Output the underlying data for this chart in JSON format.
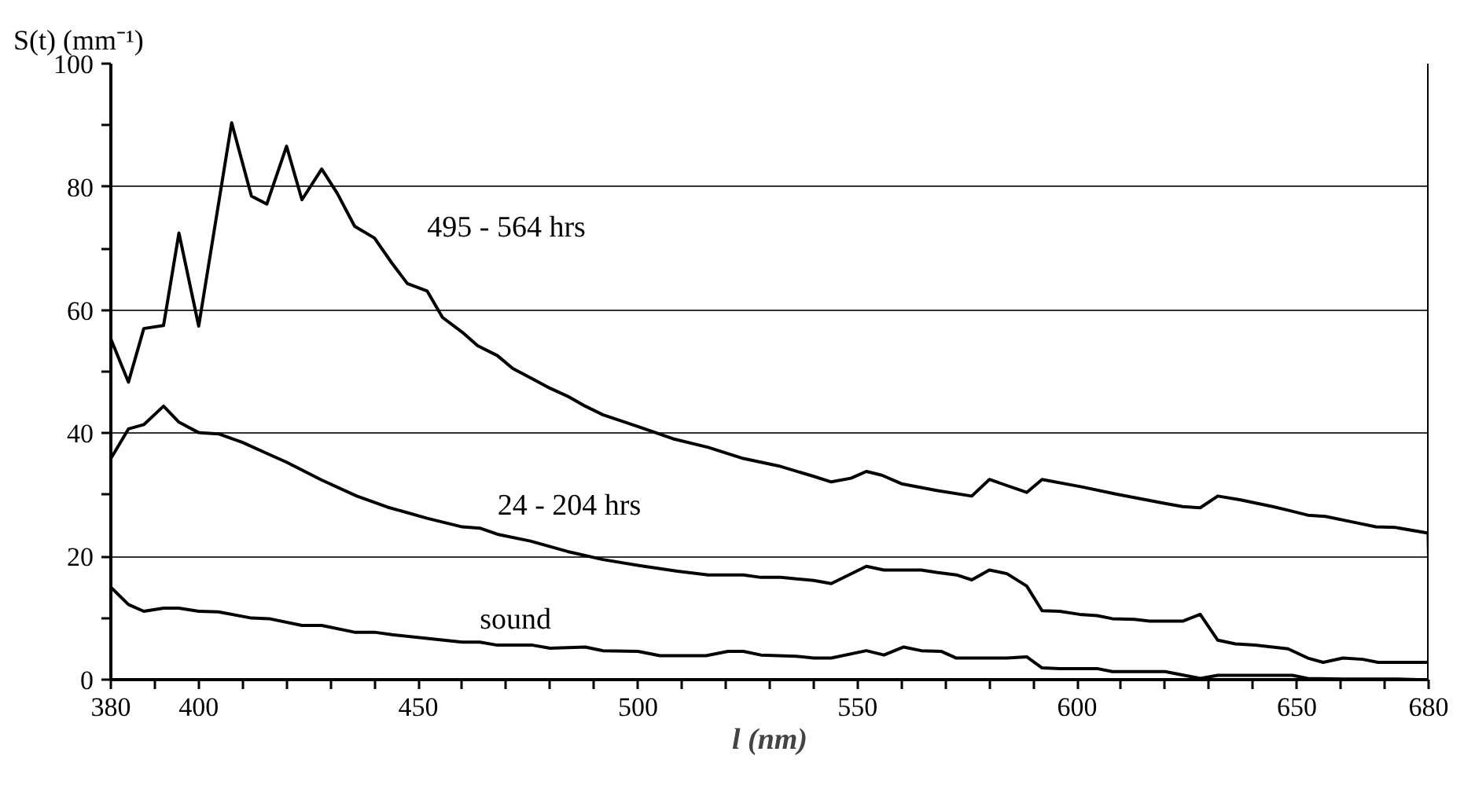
{
  "chart_data": {
    "type": "line",
    "xlabel": "l (nm)",
    "ylabel": "S(t) (mm⁻¹)",
    "xlim": [
      380,
      680
    ],
    "ylim": [
      0,
      100
    ],
    "xticks": [
      380,
      {
        "value": 390,
        "label": null
      },
      400,
      {
        "value": 410,
        "label": null
      },
      {
        "value": 420,
        "label": null
      },
      {
        "value": 430,
        "label": null
      },
      {
        "value": 440,
        "label": null
      },
      450,
      {
        "value": 460,
        "label": null
      },
      {
        "value": 470,
        "label": null
      },
      {
        "value": 480,
        "label": null
      },
      {
        "value": 490,
        "label": null
      },
      500,
      {
        "value": 510,
        "label": null
      },
      {
        "value": 520,
        "label": null
      },
      {
        "value": 530,
        "label": null
      },
      {
        "value": 540,
        "label": null
      },
      550,
      {
        "value": 560,
        "label": null
      },
      {
        "value": 570,
        "label": null
      },
      {
        "value": 580,
        "label": null
      },
      {
        "value": 590,
        "label": null
      },
      600,
      {
        "value": 610,
        "label": null
      },
      {
        "value": 620,
        "label": null
      },
      {
        "value": 630,
        "label": null
      },
      {
        "value": 640,
        "label": null
      },
      650,
      {
        "value": 660,
        "label": null
      },
      {
        "value": 670,
        "label": null
      },
      680
    ],
    "yticks": [
      0,
      {
        "value": 10,
        "label": null
      },
      20,
      {
        "value": 30,
        "label": null
      },
      40,
      {
        "value": 50,
        "label": null
      },
      60,
      {
        "value": 70,
        "label": null
      },
      80,
      {
        "value": 90,
        "label": null
      },
      100
    ],
    "grid": "y",
    "marker": "none",
    "line_style": "solid",
    "series": [
      {
        "color": "#000000",
        "x": [
          380,
          384,
          387.5,
          392,
          395.5,
          400,
          407.5,
          412,
          415.5,
          420,
          423.5,
          428,
          431.5,
          435.5,
          440,
          444,
          447.5,
          452,
          455.5,
          460,
          463.5,
          468,
          471.5,
          475.5,
          480,
          484,
          488,
          492,
          500,
          508,
          516,
          524,
          532,
          540,
          544,
          548.5,
          552,
          555.5,
          560,
          568,
          576,
          580,
          588.5,
          592,
          601,
          609,
          620,
          624,
          628,
          632,
          637,
          644.5,
          648,
          652.5,
          656.5,
          664,
          668,
          672.5,
          679.9,
          680
        ],
        "values": [
          55.3,
          48.3,
          57.0,
          57.5,
          72.5,
          57.4,
          90.4,
          78.5,
          77.2,
          86.6,
          77.9,
          82.9,
          79.0,
          73.6,
          71.7,
          67.6,
          64.3,
          63.1,
          58.8,
          56.4,
          54.2,
          52.6,
          50.5,
          49.0,
          47.3,
          46.0,
          44.4,
          43.0,
          41.1,
          39.1,
          37.7,
          35.9,
          34.7,
          33.0,
          32.1,
          32.7,
          33.8,
          33.2,
          31.8,
          30.7,
          29.8,
          32.5,
          30.4,
          32.5,
          31.3,
          30.1,
          28.6,
          28.1,
          27.9,
          29.8,
          29.2,
          28.1,
          27.5,
          26.7,
          26.5,
          25.4,
          24.8,
          24.7,
          23.8,
          19.7
        ],
        "name": "495 - 564 hrs"
      },
      {
        "color": "#000000",
        "x": [
          380,
          384,
          387.5,
          392,
          395.5,
          400,
          404.5,
          410,
          415,
          420,
          428,
          436,
          443,
          452,
          460,
          464,
          468,
          475.5,
          484,
          492,
          500.5,
          509,
          516,
          524,
          528,
          532.5,
          540,
          544,
          552,
          556,
          564.5,
          568,
          572.5,
          576,
          580,
          584,
          588.5,
          592,
          596,
          600.5,
          604.5,
          608,
          613,
          616.5,
          624,
          628,
          632,
          636,
          640.5,
          648,
          652.5,
          656,
          660.5,
          665,
          668.5,
          680
        ],
        "values": [
          35.9,
          40.7,
          41.4,
          44.4,
          41.8,
          40.1,
          39.9,
          38.5,
          36.9,
          35.3,
          32.4,
          29.8,
          28.0,
          26.2,
          24.8,
          24.6,
          23.6,
          22.5,
          20.8,
          19.5,
          18.5,
          17.6,
          17.0,
          17.0,
          16.6,
          16.6,
          16.1,
          15.6,
          18.4,
          17.8,
          17.8,
          17.4,
          17.0,
          16.2,
          17.8,
          17.2,
          15.2,
          11.2,
          11.1,
          10.6,
          10.4,
          9.9,
          9.8,
          9.5,
          9.5,
          10.6,
          6.4,
          5.8,
          5.6,
          5.0,
          3.5,
          2.8,
          3.5,
          3.3,
          2.8,
          2.8
        ],
        "name": "24 - 204 hrs"
      },
      {
        "color": "#000000",
        "x": [
          380,
          384,
          387.5,
          392,
          395.5,
          400,
          404.5,
          412,
          416,
          423.5,
          428,
          435.5,
          440,
          444,
          452,
          460,
          464,
          468,
          476,
          480,
          488,
          492,
          500,
          505,
          515.5,
          520.5,
          524,
          528,
          536,
          540,
          544,
          552,
          556,
          560.5,
          564.5,
          569,
          572.5,
          584,
          588.5,
          592,
          596,
          600.5,
          604.5,
          608,
          620,
          628,
          632,
          649,
          652.5,
          660.5,
          672.5,
          677.5,
          680
        ],
        "values": [
          15.0,
          12.2,
          11.1,
          11.6,
          11.6,
          11.1,
          11.0,
          10.0,
          9.9,
          8.8,
          8.8,
          7.7,
          7.7,
          7.3,
          6.7,
          6.1,
          6.1,
          5.6,
          5.6,
          5.1,
          5.3,
          4.7,
          4.6,
          3.9,
          3.9,
          4.6,
          4.6,
          4.0,
          3.8,
          3.5,
          3.5,
          4.7,
          4.0,
          5.3,
          4.7,
          4.6,
          3.5,
          3.5,
          3.7,
          1.9,
          1.8,
          1.8,
          1.8,
          1.3,
          1.3,
          0.2,
          0.7,
          0.7,
          0.2,
          0.1,
          0.1,
          0,
          0
        ],
        "name": "sound"
      }
    ]
  }
}
